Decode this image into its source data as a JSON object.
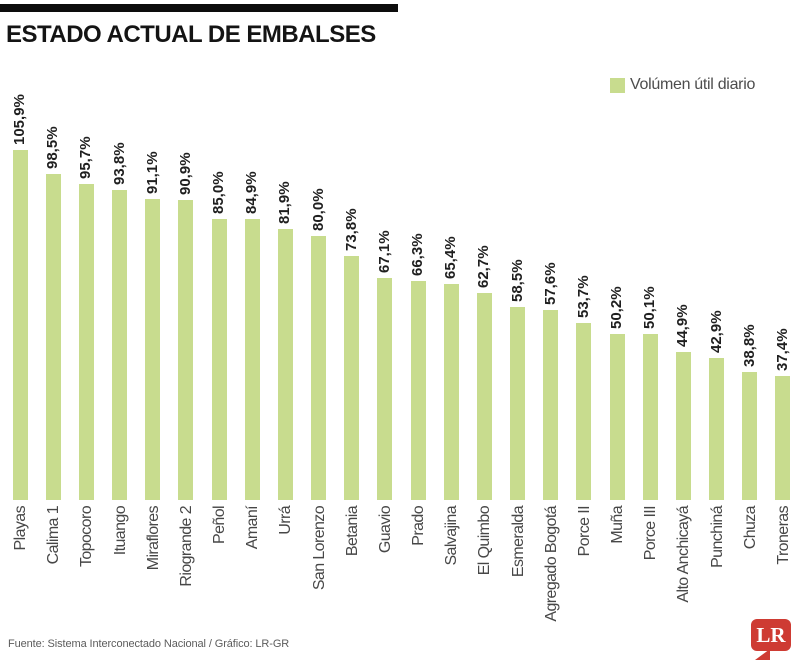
{
  "header": {
    "title": "ESTADO ACTUAL DE EMBALSES"
  },
  "legend": {
    "label": "Volúmen útil diario"
  },
  "chart_data": {
    "type": "bar",
    "title": "ESTADO ACTUAL DE EMBALSES",
    "legend_entries": [
      "Volúmen útil diario"
    ],
    "legend_position": "top-right",
    "categories": [
      "Playas",
      "Calima 1",
      "Topocoro",
      "Ituango",
      "Miraflores",
      "Riogrande 2",
      "Peñol",
      "Amaní",
      "Urrá",
      "San Lorenzo",
      "Betania",
      "Guavio",
      "Prado",
      "Salvajina",
      "El Quimbo",
      "Esmeralda",
      "Agregado Bogotá",
      "Porce II",
      "Muña",
      "Porce III",
      "Alto Anchicayá",
      "Punchiná",
      "Chuza",
      "Troneras"
    ],
    "values": [
      105.9,
      98.5,
      95.7,
      93.8,
      91.1,
      90.9,
      85.0,
      84.9,
      81.9,
      80.0,
      73.8,
      67.1,
      66.3,
      65.4,
      62.7,
      58.5,
      57.6,
      53.7,
      50.2,
      50.1,
      44.9,
      42.9,
      38.8,
      37.4
    ],
    "value_suffix": "%",
    "decimal_separator": ",",
    "xlabel": "",
    "ylabel": "",
    "ylim": [
      0,
      110
    ],
    "grid": false,
    "bar_color": "#c8dc8e",
    "value_label_rotation": -90,
    "category_label_rotation": -90
  },
  "footer": {
    "source": "Fuente: Sistema Interconectado Nacional / Gráfico: LR-GR",
    "logo_text": "LR",
    "logo_color": "#ce3b33"
  }
}
